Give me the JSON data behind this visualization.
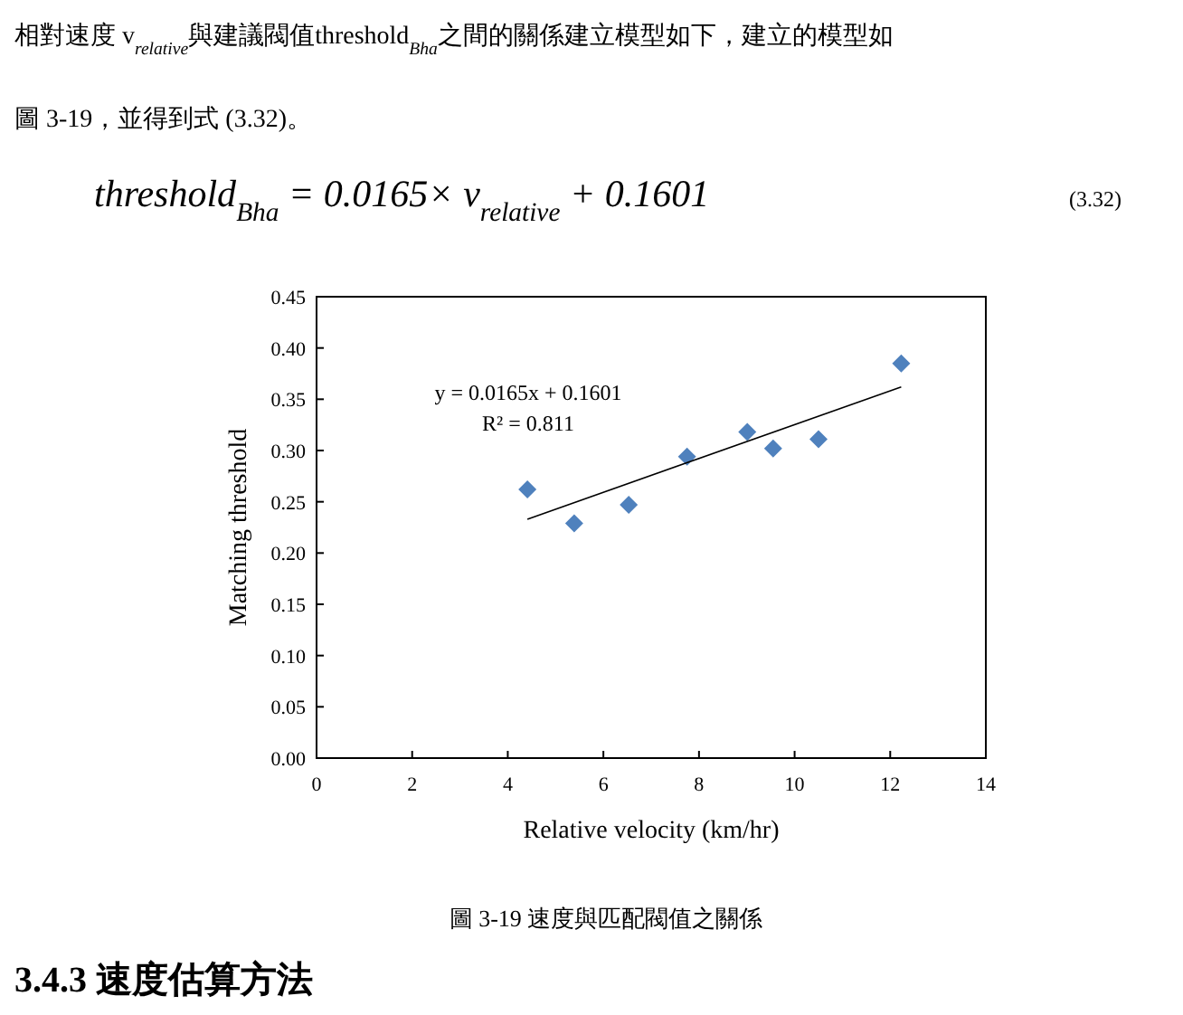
{
  "chart_data": {
    "type": "scatter",
    "title": "圖 3-19 速度與匹配閥值之關係",
    "xlabel": "Relative velocity (km/hr)",
    "ylabel": "Matching threshold",
    "xlim": [
      0,
      14
    ],
    "xticks": [
      0,
      2,
      4,
      6,
      8,
      10,
      12,
      14
    ],
    "ylim": [
      0,
      0.45
    ],
    "yticks": [
      {
        "value": 0,
        "label": "0.00"
      },
      {
        "value": 0.05,
        "label": "0.05"
      },
      {
        "value": 0.1,
        "label": "0.10"
      },
      {
        "value": 0.15,
        "label": "0.15"
      },
      {
        "value": 0.2,
        "label": "0.20"
      },
      {
        "value": 0.25,
        "label": "0.25"
      },
      {
        "value": 0.3,
        "label": "0.30"
      },
      {
        "value": 0.35,
        "label": "0.35"
      },
      {
        "value": 0.4,
        "label": "0.40"
      },
      {
        "value": 0.45,
        "label": "0.45"
      }
    ],
    "grid": false,
    "series": [
      {
        "marker": "diamond",
        "color": "#4f81bd",
        "x": [
          4.41,
          5.39,
          6.53,
          7.75,
          9.01,
          9.55,
          10.5,
          12.23
        ],
        "values": [
          0.262,
          0.229,
          0.247,
          0.294,
          0.318,
          0.302,
          0.311,
          0.385
        ]
      },
      {
        "type": "line",
        "color": "#000000",
        "line_style": "solid",
        "x": [
          4.41,
          12.23
        ],
        "values": [
          0.233,
          0.362
        ]
      }
    ],
    "annotations": [
      "相對速度 v$_{relative}$與建議閥值threshold$_{Bha}$之間的關係建立模型如下，建立的模型如",
      "圖 3-19，並得到式 (3.32)。",
      "threshold$_{Bha}$ = 0.0165× v$_{relative}$ + 0.1601",
      "(3.32)",
      "y = 0.0165x + 0.1601",
      "R² = 0.811",
      "3.4.3 速度估算方法"
    ]
  }
}
